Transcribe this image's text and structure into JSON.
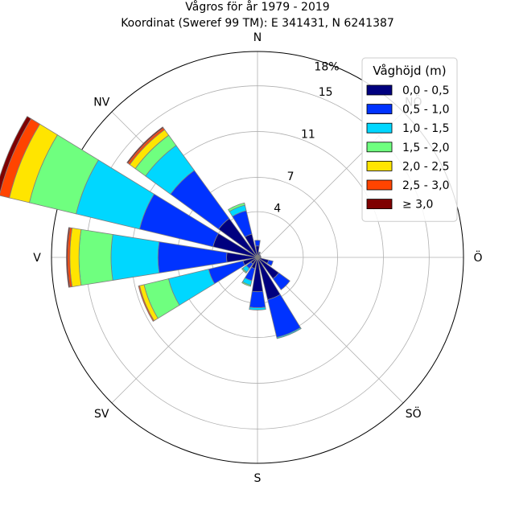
{
  "title_line1": "Vågros för år 1979 - 2019",
  "title_line2": "Koordinat (Sweref 99 TM): E 341431, N 6241387",
  "chart_data": {
    "type": "windrose",
    "directions": [
      "N",
      "NNÖ",
      "NÖ",
      "ÖNÖ",
      "Ö",
      "ÖSÖ",
      "SÖ",
      "SSÖ",
      "S",
      "SSV",
      "SV",
      "VSV",
      "V",
      "VNV",
      "NV",
      "NNV"
    ],
    "direction_labels": [
      "N",
      "NÖ",
      "Ö",
      "SÖ",
      "S",
      "SV",
      "V",
      "NV"
    ],
    "radial_ticks": [
      4,
      7,
      11,
      15
    ],
    "radial_max_label": "18%",
    "rmax": 18,
    "legend_title": "Våghöjd (m)",
    "legend_placement": "top-right",
    "series": [
      {
        "name": "0,0 - 0,5",
        "color": "#00007f",
        "values": [
          1.0,
          0.4,
          0.2,
          0.3,
          0.3,
          1.0,
          2.3,
          3.8,
          3.0,
          1.0,
          0.7,
          1.3,
          2.7,
          4.0,
          4.2,
          2.1
        ]
      },
      {
        "name": "0,5 - 1,0",
        "color": "#0033ff",
        "values": [
          0.5,
          0.1,
          0.1,
          0.0,
          0.0,
          0.4,
          1.2,
          3.4,
          1.4,
          1.1,
          0.5,
          3.1,
          6.0,
          6.6,
          5.2,
          2.1
        ]
      },
      {
        "name": "1,0 - 1,5",
        "color": "#00d7ff",
        "values": [
          0.0,
          0.0,
          0.0,
          0.0,
          0.0,
          0.0,
          0.0,
          0.1,
          0.2,
          0.4,
          0.4,
          3.6,
          4.1,
          5.7,
          2.7,
          0.5
        ]
      },
      {
        "name": "1,5 - 2,0",
        "color": "#6fff7f",
        "values": [
          0.0,
          0.0,
          0.0,
          0.0,
          0.0,
          0.0,
          0.0,
          0.0,
          0.0,
          0.1,
          0.1,
          2.2,
          2.8,
          4.2,
          1.1,
          0.2
        ]
      },
      {
        "name": "2,0 - 2,5",
        "color": "#ffe500",
        "values": [
          0.0,
          0.0,
          0.0,
          0.0,
          0.0,
          0.0,
          0.0,
          0.0,
          0.0,
          0.0,
          0.0,
          0.4,
          0.8,
          1.8,
          0.6,
          0.0
        ]
      },
      {
        "name": "2,5 - 3,0",
        "color": "#ff4400",
        "values": [
          0.0,
          0.0,
          0.0,
          0.0,
          0.0,
          0.0,
          0.0,
          0.0,
          0.0,
          0.0,
          0.0,
          0.1,
          0.2,
          0.9,
          0.2,
          0.0
        ]
      },
      {
        "name": "≥ 3,0",
        "color": "#7f0000",
        "values": [
          0.0,
          0.0,
          0.0,
          0.0,
          0.0,
          0.0,
          0.0,
          0.0,
          0.0,
          0.0,
          0.0,
          0.0,
          0.1,
          0.4,
          0.1,
          0.0
        ]
      }
    ]
  }
}
